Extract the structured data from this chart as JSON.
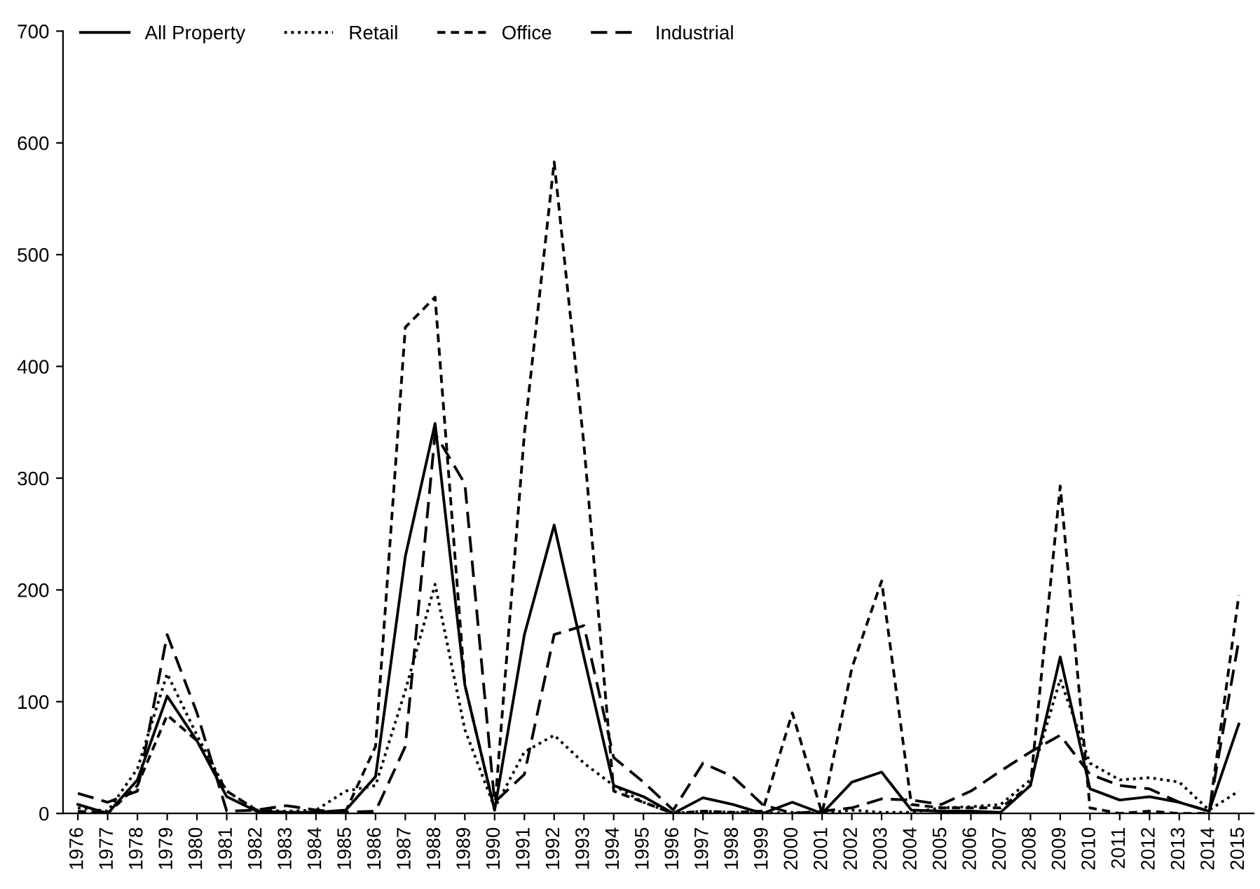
{
  "chart_data": {
    "type": "line",
    "categories": [
      "1976",
      "1977",
      "1978",
      "1979",
      "1980",
      "1981",
      "1982",
      "1983",
      "1984",
      "1985",
      "1986",
      "1987",
      "1988",
      "1989",
      "1990",
      "1991",
      "1992",
      "1993",
      "1994",
      "1995",
      "1996",
      "1997",
      "1998",
      "1999",
      "2000",
      "2001",
      "2002",
      "2003",
      "2004",
      "2005",
      "2006",
      "2007",
      "2008",
      "2009",
      "2010",
      "2011",
      "2012",
      "2013",
      "2014",
      "2015"
    ],
    "series": [
      {
        "name": "All Property",
        "color": "#000000",
        "line_style": "solid",
        "values": [
          8,
          0,
          30,
          105,
          65,
          15,
          2,
          1,
          1,
          3,
          33,
          230,
          349,
          115,
          3,
          160,
          258,
          140,
          25,
          15,
          0,
          14,
          8,
          0,
          10,
          0,
          28,
          37,
          3,
          2,
          2,
          1,
          25,
          140,
          22,
          12,
          15,
          10,
          2,
          80
        ]
      },
      {
        "name": "Retail",
        "color": "#000000",
        "line_style": "dotted",
        "values": [
          5,
          2,
          40,
          125,
          70,
          20,
          3,
          2,
          3,
          20,
          25,
          110,
          205,
          75,
          5,
          55,
          70,
          45,
          25,
          10,
          0,
          2,
          1,
          0,
          1,
          0,
          3,
          1,
          1,
          5,
          6,
          8,
          30,
          120,
          45,
          30,
          32,
          28,
          3,
          20
        ]
      },
      {
        "name": "Office",
        "color": "#000000",
        "line_style": "dashed",
        "values": [
          2,
          0,
          25,
          88,
          65,
          20,
          3,
          1,
          1,
          2,
          60,
          435,
          462,
          115,
          3,
          340,
          583,
          330,
          20,
          10,
          0,
          2,
          1,
          2,
          90,
          0,
          130,
          208,
          8,
          5,
          5,
          5,
          25,
          293,
          5,
          0,
          2,
          0,
          0,
          195
        ]
      },
      {
        "name": "Industrial",
        "color": "#000000",
        "line_style": "long dashed",
        "values": [
          18,
          10,
          20,
          160,
          90,
          2,
          3,
          7,
          3,
          1,
          2,
          60,
          340,
          295,
          10,
          35,
          160,
          168,
          50,
          28,
          3,
          45,
          33,
          8,
          0,
          2,
          5,
          13,
          12,
          8,
          20,
          38,
          55,
          70,
          35,
          25,
          22,
          10,
          2,
          155
        ]
      }
    ],
    "ylim": [
      0,
      700
    ],
    "yticks": [
      0,
      100,
      200,
      300,
      400,
      500,
      600,
      700
    ],
    "grid": false,
    "legend": "top left"
  }
}
